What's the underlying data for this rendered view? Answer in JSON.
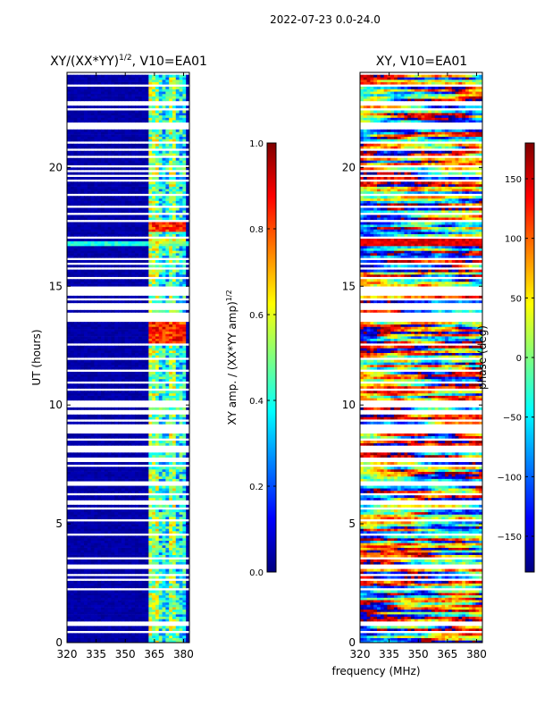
{
  "suptitle": "2022-07-23 0.0-24.0",
  "colors": {
    "jet": [
      "#00007f",
      "#0000ff",
      "#007fff",
      "#00ffff",
      "#7fff7f",
      "#ffff00",
      "#ff7f00",
      "#ff0000",
      "#7f0000"
    ],
    "frame": "#000000",
    "background": "#ffffff"
  },
  "chart_data": [
    {
      "type": "heatmap",
      "title_main": "XY/(XX*YY)",
      "title_exp": "1/2",
      "title_tail": ", V10=EA01",
      "ylabel": "UT (hours)",
      "xlim": [
        320,
        383
      ],
      "ylim": [
        0,
        24
      ],
      "xticks": [
        320,
        335,
        350,
        365,
        380
      ],
      "yticks": [
        0,
        5,
        10,
        15,
        20
      ],
      "colorbar": {
        "label_main": "XY amp. / (XX*YY amp)",
        "label_exp": "1/2",
        "range": [
          0.0,
          1.0
        ],
        "ticks": [
          0.0,
          0.2,
          0.4,
          0.6,
          0.8,
          1.0
        ],
        "tick_labels": [
          "0.0",
          "0.2",
          "0.4",
          "0.6",
          "0.8",
          "1.0"
        ]
      }
    },
    {
      "type": "heatmap",
      "title_main": "XY, V10=EA01",
      "xlabel": "frequency (MHz)",
      "xlim": [
        320,
        383
      ],
      "ylim": [
        0,
        24
      ],
      "xticks": [
        320,
        335,
        350,
        365,
        380
      ],
      "yticks": [
        0,
        5,
        10,
        15,
        20
      ],
      "colorbar": {
        "label_main": "phase (deg)",
        "range": [
          -180,
          180
        ],
        "ticks": [
          -150,
          -100,
          -50,
          0,
          50,
          100,
          150
        ],
        "tick_labels": [
          "−150",
          "−100",
          "−50",
          "0",
          "50",
          "100",
          "150"
        ]
      }
    }
  ]
}
